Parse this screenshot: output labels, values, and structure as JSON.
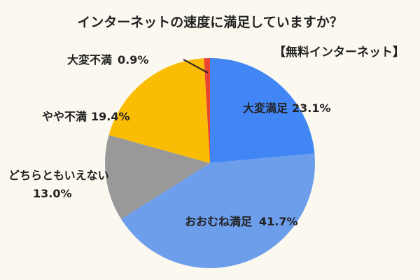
{
  "chart_data": {
    "type": "pie",
    "title": "インターネットの速度に満足していますか？",
    "subtitle": "【無料インターネット】",
    "slices": [
      {
        "label": "大変満足",
        "value_text": "23.1%",
        "value": 23.1,
        "color": "#4285f4"
      },
      {
        "label": "おおむね満足",
        "value_text": "41.7%",
        "value": 41.7,
        "color": "#6d9eeb"
      },
      {
        "label": "どちらともいえない",
        "value_text": "13.0%",
        "value": 13.0,
        "color": "#999999"
      },
      {
        "label": "やや不満",
        "value_text": "19.4%",
        "value": 19.4,
        "color": "#fbbc04"
      },
      {
        "label": "大変不満",
        "value_text": "0.9%",
        "value": 0.9,
        "color": "#ea4335"
      }
    ]
  }
}
